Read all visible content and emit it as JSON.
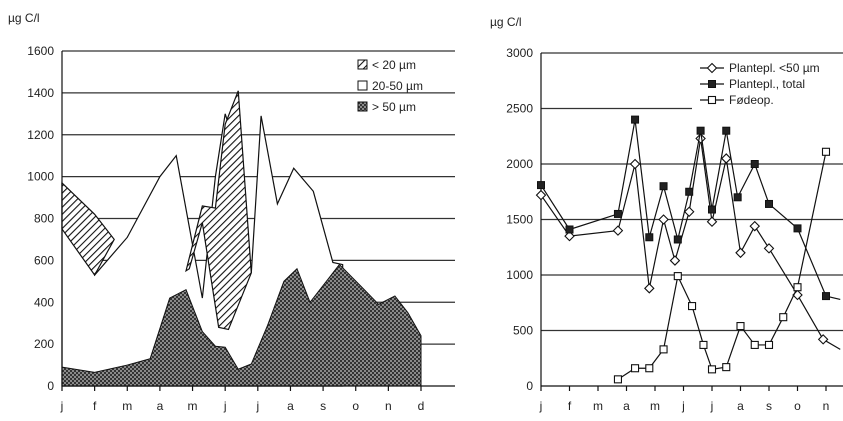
{
  "chart_data": [
    {
      "type": "area",
      "unit_label": "µg C/l",
      "x": [
        "j",
        "f",
        "m",
        "a",
        "m",
        "j",
        "j",
        "a",
        "s",
        "o",
        "n",
        "d"
      ],
      "ylim": [
        0,
        1600
      ],
      "yticks": [
        0,
        200,
        400,
        600,
        800,
        1000,
        1200,
        1400,
        1600
      ],
      "grid": true,
      "legend_position": "top-right",
      "series": [
        {
          "name": "> 50 µm",
          "pattern": "crosshatch",
          "points": [
            [
              0.0,
              90
            ],
            [
              1.0,
              65
            ],
            [
              2.0,
              100
            ],
            [
              2.7,
              130
            ],
            [
              3.3,
              420
            ],
            [
              3.8,
              460
            ],
            [
              4.3,
              260
            ],
            [
              4.7,
              190
            ],
            [
              5.0,
              185
            ],
            [
              5.4,
              80
            ],
            [
              5.8,
              105
            ],
            [
              6.3,
              290
            ],
            [
              6.8,
              500
            ],
            [
              7.2,
              560
            ],
            [
              7.6,
              400
            ],
            [
              8.0,
              480
            ],
            [
              8.5,
              580
            ],
            [
              9.2,
              470
            ],
            [
              9.7,
              390
            ],
            [
              10.2,
              430
            ],
            [
              10.6,
              350
            ],
            [
              11.0,
              240
            ]
          ]
        },
        {
          "name": "20-50 µm",
          "pattern": "white",
          "points": [
            [
              0.0,
              970
            ],
            [
              1.0,
              530
            ],
            [
              2.0,
              710
            ],
            [
              3.0,
              1000
            ],
            [
              3.5,
              1100
            ],
            [
              4.3,
              420
            ],
            [
              4.7,
              1000
            ],
            [
              5.0,
              1300
            ],
            [
              5.4,
              1100
            ],
            [
              5.8,
              540
            ],
            [
              6.1,
              1290
            ],
            [
              6.6,
              870
            ],
            [
              7.1,
              1040
            ],
            [
              7.7,
              930
            ],
            [
              8.3,
              590
            ],
            [
              8.6,
              580
            ]
          ]
        },
        {
          "name": "< 20 µm",
          "pattern": "diagonal",
          "polygons": [
            [
              [
                0.0,
                970
              ],
              [
                1.0,
                820
              ],
              [
                1.6,
                700
              ],
              [
                1.0,
                530
              ],
              [
                0.0,
                750
              ]
            ],
            [
              [
                3.8,
                550
              ],
              [
                4.3,
                860
              ],
              [
                4.7,
                850
              ],
              [
                5.0,
                1250
              ],
              [
                5.4,
                1410
              ],
              [
                5.8,
                540
              ],
              [
                5.1,
                270
              ],
              [
                4.8,
                280
              ],
              [
                4.3,
                780
              ],
              [
                3.9,
                560
              ]
            ]
          ]
        }
      ]
    },
    {
      "type": "line",
      "unit_label": "µg C/l",
      "x": [
        "j",
        "f",
        "m",
        "a",
        "m",
        "j",
        "j",
        "a",
        "s",
        "o",
        "n"
      ],
      "ylim": [
        0,
        3000
      ],
      "yticks": [
        0,
        500,
        1000,
        1500,
        2000,
        2500,
        3000
      ],
      "grid": true,
      "legend_position": "top-right",
      "series": [
        {
          "name": "Plantepl. <50 µm",
          "marker": "diamond",
          "points": [
            [
              0.0,
              1720
            ],
            [
              1.0,
              1350
            ],
            [
              2.7,
              1400
            ],
            [
              3.3,
              2000
            ],
            [
              3.8,
              880
            ],
            [
              4.3,
              1500
            ],
            [
              4.7,
              1130
            ],
            [
              5.2,
              1570
            ],
            [
              5.6,
              2230
            ],
            [
              6.0,
              1480
            ],
            [
              6.5,
              2050
            ],
            [
              7.0,
              1200
            ],
            [
              7.5,
              1440
            ],
            [
              8.0,
              1240
            ],
            [
              9.0,
              820
            ],
            [
              9.9,
              420
            ],
            [
              10.5,
              330
            ],
            [
              11.3,
              460
            ]
          ]
        },
        {
          "name": "Plantepl., total",
          "marker": "square-filled",
          "points": [
            [
              0.0,
              1810
            ],
            [
              1.0,
              1410
            ],
            [
              2.7,
              1550
            ],
            [
              3.3,
              2400
            ],
            [
              3.8,
              1340
            ],
            [
              4.3,
              1800
            ],
            [
              4.8,
              1320
            ],
            [
              5.2,
              1750
            ],
            [
              5.6,
              2300
            ],
            [
              6.0,
              1590
            ],
            [
              6.5,
              2300
            ],
            [
              6.9,
              1700
            ],
            [
              7.5,
              2000
            ],
            [
              8.0,
              1640
            ],
            [
              9.0,
              1420
            ],
            [
              10.0,
              810
            ],
            [
              10.5,
              780
            ],
            [
              11.3,
              710
            ]
          ]
        },
        {
          "name": "Fødeop.",
          "marker": "square-open",
          "points": [
            [
              2.7,
              60
            ],
            [
              3.3,
              160
            ],
            [
              3.8,
              160
            ],
            [
              4.3,
              330
            ],
            [
              4.8,
              990
            ],
            [
              5.3,
              720
            ],
            [
              5.7,
              370
            ],
            [
              6.0,
              150
            ],
            [
              6.5,
              170
            ],
            [
              7.0,
              540
            ],
            [
              7.5,
              370
            ],
            [
              8.0,
              370
            ],
            [
              8.5,
              620
            ],
            [
              9.0,
              890
            ],
            [
              10.0,
              2110
            ],
            [
              10.6,
              1140
            ]
          ]
        }
      ]
    }
  ],
  "colors": {
    "ink": "#111111",
    "background": "#ffffff",
    "grid": "#333333"
  }
}
